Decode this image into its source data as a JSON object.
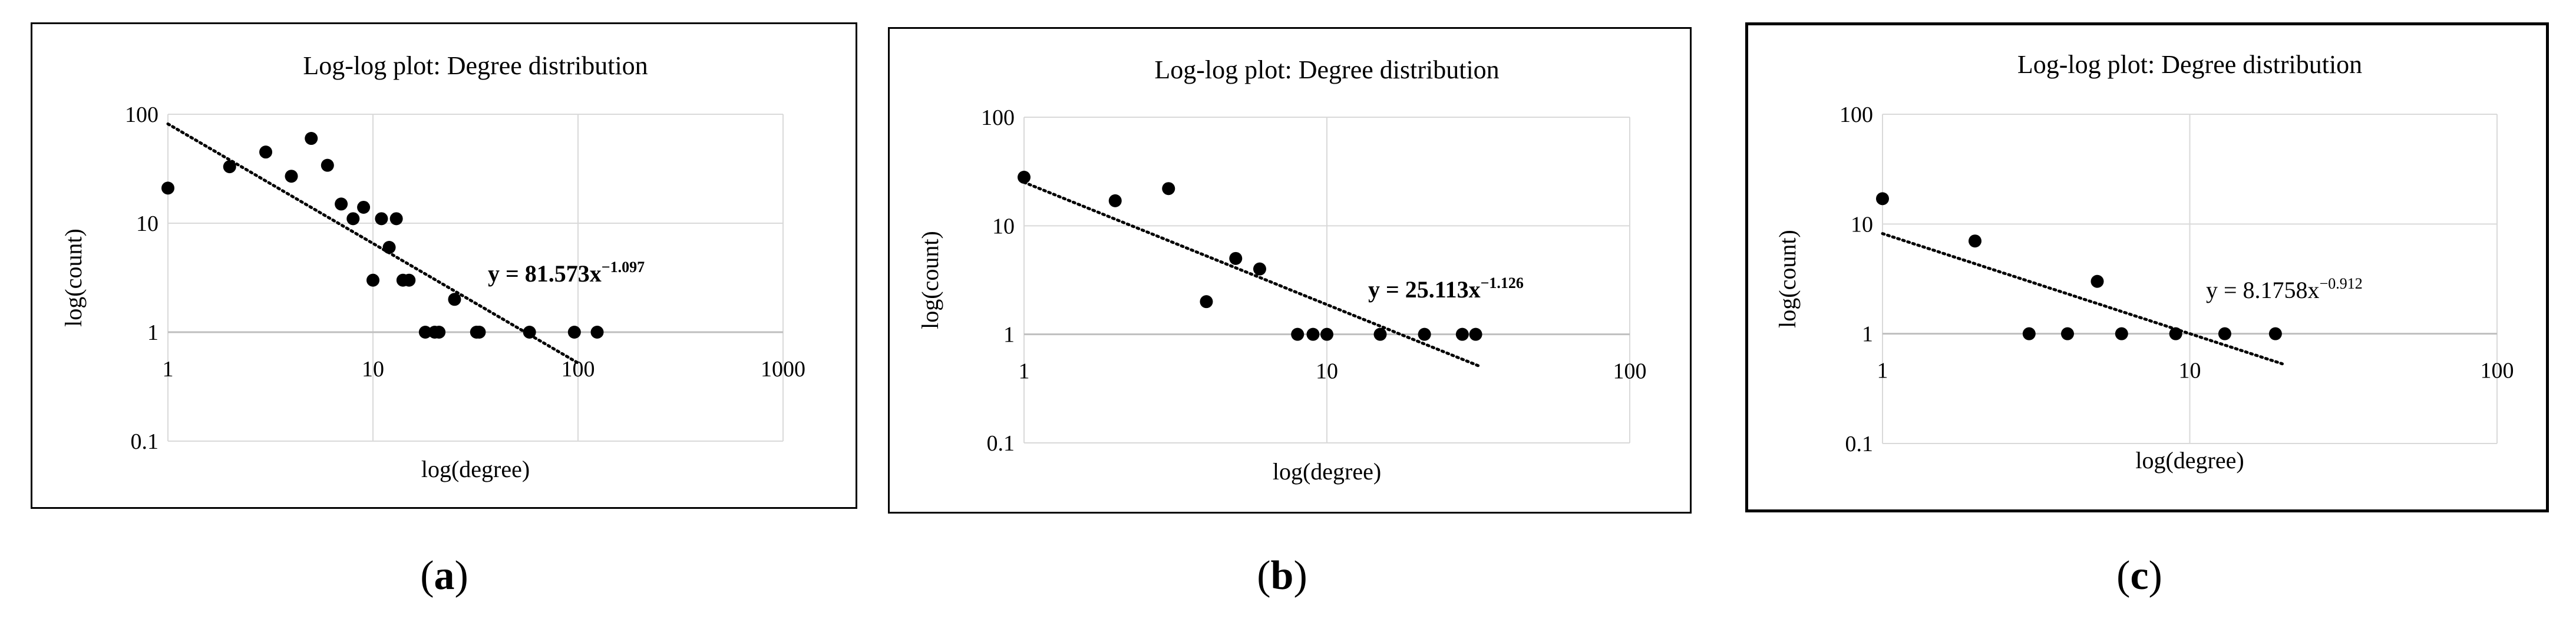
{
  "chart_data": [
    {
      "type": "scatter",
      "title": "Log-log plot: Degree distribution",
      "xlabel": "log(degree)",
      "ylabel": "log(count)",
      "xscale": "log",
      "yscale": "log",
      "xlim": [
        1,
        1000
      ],
      "ylim": [
        0.1,
        100
      ],
      "x_ticks": [
        "1",
        "10",
        "100",
        "1000"
      ],
      "y_ticks": [
        "100",
        "10",
        "1",
        "0.1"
      ],
      "grid": true,
      "trendline": {
        "type": "power",
        "coefficient": 81.573,
        "exponent": -1.097,
        "x_range": [
          1,
          100
        ],
        "style": "dotted",
        "label_prefix": "y = 81.573x",
        "label_exponent": "−1.097",
        "label_bold": true
      },
      "points": [
        [
          1,
          21
        ],
        [
          2,
          33
        ],
        [
          3,
          45
        ],
        [
          4,
          27
        ],
        [
          5,
          60
        ],
        [
          6,
          34
        ],
        [
          7,
          15
        ],
        [
          8,
          11
        ],
        [
          9,
          14
        ],
        [
          10,
          3
        ],
        [
          11,
          11
        ],
        [
          12,
          6
        ],
        [
          13,
          11
        ],
        [
          14,
          3
        ],
        [
          15,
          3
        ],
        [
          18,
          1
        ],
        [
          20,
          1
        ],
        [
          21,
          1
        ],
        [
          25,
          2
        ],
        [
          32,
          1
        ],
        [
          33,
          1
        ],
        [
          58,
          1
        ],
        [
          96,
          1
        ],
        [
          124,
          1
        ]
      ],
      "caption": "a"
    },
    {
      "type": "scatter",
      "title": "Log-log plot: Degree distribution",
      "xlabel": "log(degree)",
      "ylabel": "log(count)",
      "xscale": "log",
      "yscale": "log",
      "xlim": [
        1,
        100
      ],
      "ylim": [
        0.1,
        100
      ],
      "x_ticks": [
        "1",
        "10",
        "100"
      ],
      "y_ticks": [
        "100",
        "10",
        "1",
        "0.1"
      ],
      "grid": true,
      "trendline": {
        "type": "power",
        "coefficient": 25.113,
        "exponent": -1.126,
        "x_range": [
          1,
          32
        ],
        "style": "dotted",
        "label_prefix": "y = 25.113x",
        "label_exponent": "−1.126",
        "label_bold": true
      },
      "points": [
        [
          1,
          28
        ],
        [
          2,
          17
        ],
        [
          3,
          22
        ],
        [
          4,
          2
        ],
        [
          5,
          5
        ],
        [
          6,
          4
        ],
        [
          8,
          1
        ],
        [
          9,
          1
        ],
        [
          10,
          1
        ],
        [
          15,
          1
        ],
        [
          21,
          1
        ],
        [
          28,
          1
        ],
        [
          31,
          1
        ]
      ],
      "caption": "b"
    },
    {
      "type": "scatter",
      "title": "Log-log plot: Degree distribution",
      "xlabel": "log(degree)",
      "ylabel": "log(count)",
      "xscale": "log",
      "yscale": "log",
      "xlim": [
        1,
        100
      ],
      "ylim": [
        0.1,
        100
      ],
      "x_ticks": [
        "1",
        "10",
        "100"
      ],
      "y_ticks": [
        "100",
        "10",
        "1",
        "0.1"
      ],
      "grid": true,
      "trendline": {
        "type": "power",
        "coefficient": 8.1758,
        "exponent": -0.912,
        "x_range": [
          1,
          20
        ],
        "style": "dotted",
        "label_prefix": "y = 8.1758x",
        "label_exponent": "−0.912",
        "label_bold": false
      },
      "points": [
        [
          1,
          17
        ],
        [
          2,
          7
        ],
        [
          3,
          1
        ],
        [
          4,
          1
        ],
        [
          5,
          3
        ],
        [
          6,
          1
        ],
        [
          9,
          1
        ],
        [
          13,
          1
        ],
        [
          19,
          1
        ]
      ],
      "caption": "c"
    }
  ],
  "captions": {
    "a": {
      "open": "(",
      "letter": "a",
      "close": ")"
    },
    "b": {
      "open": "(",
      "letter": "b",
      "close": ")"
    },
    "c": {
      "open": "(",
      "letter": "c",
      "close": ")"
    }
  }
}
